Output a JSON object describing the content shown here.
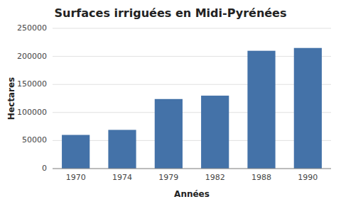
{
  "chart_data": {
    "type": "bar",
    "title": "Surfaces irriguées en Midi-Pyrénées",
    "xlabel": "Années",
    "ylabel": "Hectares",
    "categories": [
      "1970",
      "1974",
      "1979",
      "1982",
      "1988",
      "1990"
    ],
    "values": [
      60000,
      69000,
      124000,
      130000,
      210000,
      215000
    ],
    "color": "#4472a8",
    "ylim": [
      0,
      250000
    ],
    "yticks": [
      0,
      50000,
      100000,
      150000,
      200000,
      250000
    ],
    "grid": true
  }
}
